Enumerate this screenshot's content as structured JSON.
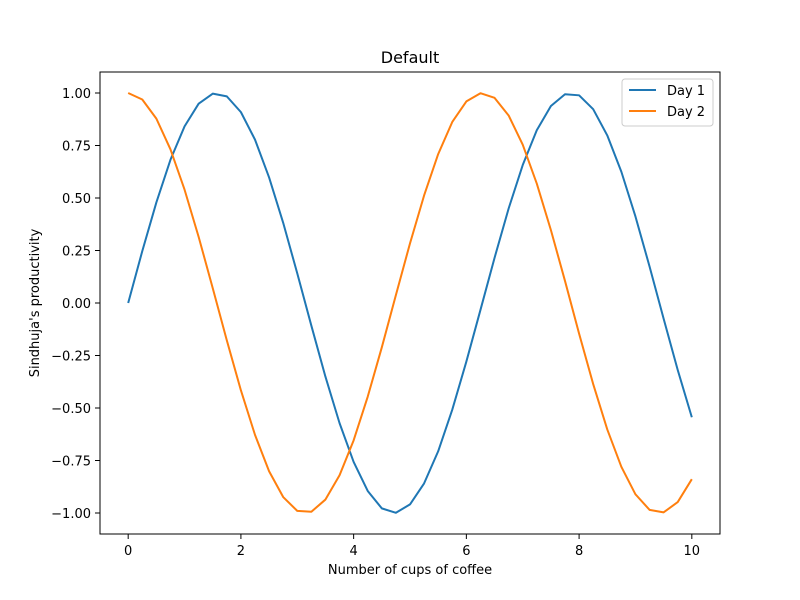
{
  "chart_data": {
    "type": "line",
    "title": "Default",
    "xlabel": "Number of cups of coffee",
    "ylabel": "Sindhuja's productivity",
    "xlim": [
      -0.5,
      10.5
    ],
    "ylim": [
      -1.1,
      1.1
    ],
    "xticks": [
      0,
      2,
      4,
      6,
      8,
      10
    ],
    "xtick_labels": [
      "0",
      "2",
      "4",
      "6",
      "8",
      "10"
    ],
    "yticks": [
      -1.0,
      -0.75,
      -0.5,
      -0.25,
      0.0,
      0.25,
      0.5,
      0.75,
      1.0
    ],
    "ytick_labels": [
      "−1.00",
      "−0.75",
      "−0.50",
      "−0.25",
      "0.00",
      "0.25",
      "0.50",
      "0.75",
      "1.00"
    ],
    "grid": false,
    "legend_position": "top-right",
    "x": [
      0,
      0.25,
      0.5,
      0.75,
      1.0,
      1.25,
      1.5,
      1.75,
      2.0,
      2.25,
      2.5,
      2.75,
      3.0,
      3.25,
      3.5,
      3.75,
      4.0,
      4.25,
      4.5,
      4.75,
      5.0,
      5.25,
      5.5,
      5.75,
      6.0,
      6.25,
      6.5,
      6.75,
      7.0,
      7.25,
      7.5,
      7.75,
      8.0,
      8.25,
      8.5,
      8.75,
      9.0,
      9.25,
      9.5,
      9.75,
      10.0
    ],
    "series": [
      {
        "name": "Day 1",
        "color": "#1f77b4",
        "values": [
          0.0,
          0.247,
          0.479,
          0.682,
          0.841,
          0.949,
          0.997,
          0.984,
          0.909,
          0.778,
          0.598,
          0.382,
          0.141,
          -0.108,
          -0.351,
          -0.572,
          -0.757,
          -0.895,
          -0.978,
          -0.999,
          -0.959,
          -0.859,
          -0.706,
          -0.508,
          -0.279,
          -0.033,
          0.215,
          0.45,
          0.657,
          0.823,
          0.938,
          0.994,
          0.989,
          0.923,
          0.798,
          0.625,
          0.412,
          0.174,
          -0.075,
          -0.319,
          -0.544
        ]
      },
      {
        "name": "Day 2",
        "color": "#ff7f0e",
        "values": [
          1.0,
          0.969,
          0.878,
          0.732,
          0.54,
          0.315,
          0.071,
          -0.178,
          -0.416,
          -0.628,
          -0.801,
          -0.924,
          -0.99,
          -0.994,
          -0.936,
          -0.82,
          -0.654,
          -0.446,
          -0.211,
          0.038,
          0.284,
          0.512,
          0.709,
          0.862,
          0.96,
          0.999,
          0.977,
          0.893,
          0.754,
          0.568,
          0.347,
          0.105,
          -0.146,
          -0.386,
          -0.602,
          -0.78,
          -0.911,
          -0.985,
          -0.997,
          -0.948,
          -0.839
        ]
      }
    ]
  }
}
